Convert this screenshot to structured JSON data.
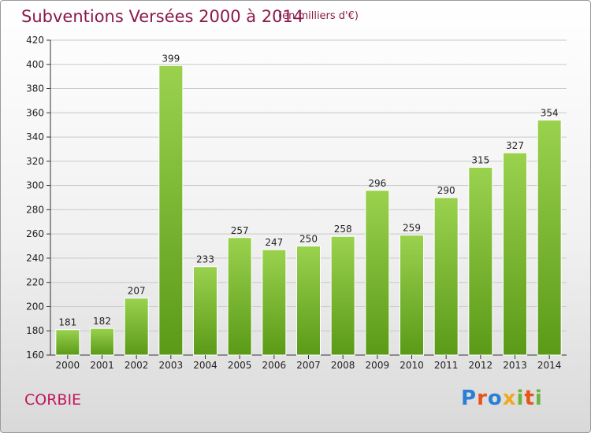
{
  "title": "Subventions Versées 2000 à 2014",
  "unit_note": "(en milliers d'€)",
  "place": "CORBIE",
  "logo_text": "Proxiti",
  "colors": {
    "bar_top": "#9ad24e",
    "bar_bottom": "#5a9a17",
    "title": "#8b1a4a",
    "place": "#c2185b",
    "grid": "#c8c8c8"
  },
  "chart_data": {
    "type": "bar",
    "categories": [
      "2000",
      "2001",
      "2002",
      "2003",
      "2004",
      "2005",
      "2006",
      "2007",
      "2008",
      "2009",
      "2010",
      "2011",
      "2012",
      "2013",
      "2014"
    ],
    "values": [
      181,
      182,
      207,
      399,
      233,
      257,
      247,
      250,
      258,
      296,
      259,
      290,
      315,
      327,
      354
    ],
    "data_labels": [
      "181",
      "182",
      "207",
      "399",
      "233",
      "257",
      "247",
      "250",
      "258",
      "296",
      "259",
      "290",
      "315",
      "327",
      "354"
    ],
    "ylim": [
      160,
      420
    ],
    "yticks": [
      "160",
      "180",
      "200",
      "220",
      "240",
      "260",
      "280",
      "300",
      "320",
      "340",
      "360",
      "380",
      "400",
      "420"
    ],
    "grid": true
  }
}
